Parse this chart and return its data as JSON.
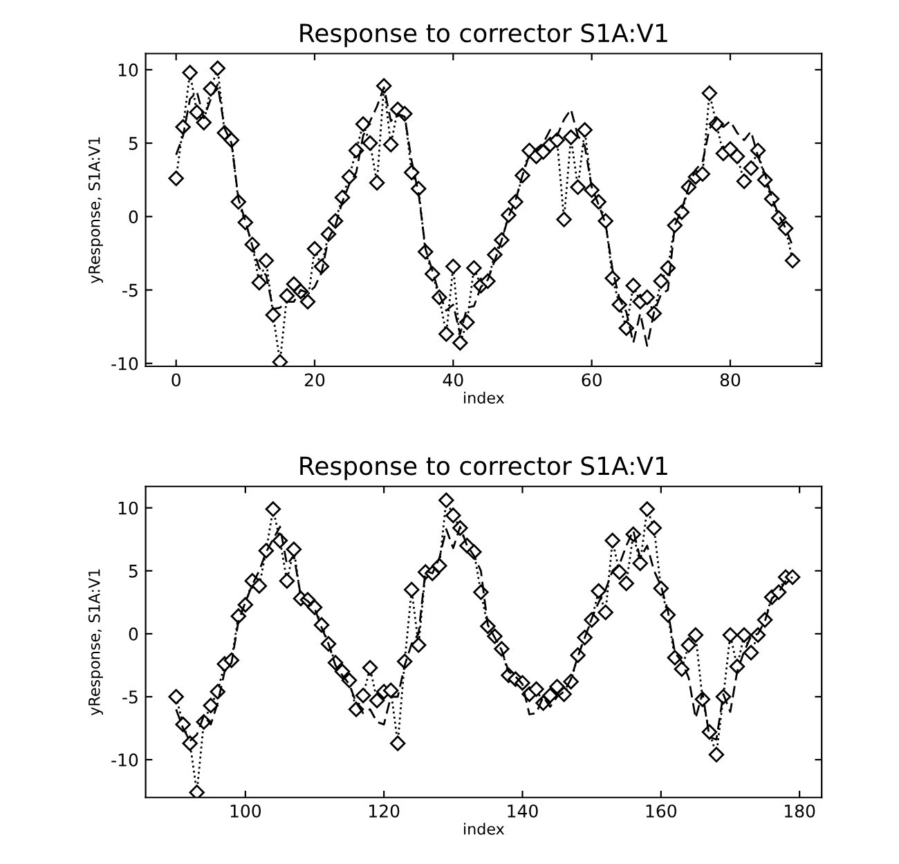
{
  "chart_data": [
    {
      "type": "line",
      "title": "Response to corrector S1A:V1",
      "xlabel": "index",
      "ylabel": "yResponse, S1A:V1",
      "x": [
        0,
        1,
        2,
        3,
        4,
        5,
        6,
        7,
        8,
        9,
        10,
        11,
        12,
        13,
        14,
        15,
        16,
        17,
        18,
        19,
        20,
        21,
        22,
        23,
        24,
        25,
        26,
        27,
        28,
        29,
        30,
        31,
        32,
        33,
        34,
        35,
        36,
        37,
        38,
        39,
        40,
        41,
        42,
        43,
        44,
        45,
        46,
        47,
        48,
        49,
        50,
        51,
        52,
        53,
        54,
        55,
        56,
        57,
        58,
        59,
        60,
        61,
        62,
        63,
        64,
        65,
        66,
        67,
        68,
        69,
        70,
        71,
        72,
        73,
        74,
        75,
        76,
        77,
        78,
        79,
        80,
        81,
        82,
        83,
        84,
        85,
        86,
        87,
        88,
        89
      ],
      "xlim": [
        -4.4,
        93.2
      ],
      "xticks": [
        0,
        20,
        40,
        60,
        80
      ],
      "ylim": [
        -10.2,
        11.1
      ],
      "yticks": [
        -10,
        -5,
        0,
        5,
        10
      ],
      "grid": false,
      "series": [
        {
          "color": "#000000",
          "marker": "diamond",
          "line_style": "dotted",
          "values": [
            2.6,
            6.1,
            9.8,
            7.1,
            6.4,
            8.7,
            10.1,
            5.7,
            5.2,
            1.0,
            -0.4,
            -1.9,
            -4.5,
            -3.0,
            -6.7,
            -9.9,
            -5.4,
            -4.6,
            -5.1,
            -5.8,
            -2.2,
            -3.4,
            -1.2,
            -0.3,
            1.3,
            2.7,
            4.5,
            6.3,
            5.0,
            2.3,
            8.9,
            4.9,
            7.3,
            7.0,
            3.0,
            1.9,
            -2.4,
            -3.9,
            -5.5,
            -8.0,
            -3.4,
            -8.6,
            -7.2,
            -3.5,
            -4.7,
            -4.4,
            -2.6,
            -1.6,
            0.1,
            1.0,
            2.8,
            4.5,
            4.1,
            4.4,
            4.9,
            5.2,
            -0.2,
            5.4,
            2.0,
            5.9,
            1.8,
            1.0,
            -0.3,
            -4.2,
            -6.0,
            -7.6,
            -4.7,
            -5.8,
            -5.5,
            -6.6,
            -4.4,
            -3.5,
            -0.6,
            0.3,
            2.0,
            2.7,
            2.9,
            8.4,
            6.3,
            4.3,
            4.6,
            4.1,
            2.4,
            3.3,
            4.5,
            2.5,
            1.2,
            -0.1,
            -0.8,
            -3.0
          ]
        },
        {
          "color": "#000000",
          "marker": "none",
          "line_style": "dashed",
          "values": [
            4.2,
            5.5,
            8.0,
            8.5,
            6.7,
            8.0,
            9.0,
            6.0,
            5.0,
            1.2,
            -0.3,
            -2.0,
            -3.5,
            -4.0,
            -6.3,
            -6.2,
            -5.8,
            -5.8,
            -5.0,
            -5.2,
            -4.8,
            -3.8,
            -1.5,
            -0.6,
            1.0,
            2.2,
            3.0,
            5.5,
            6.5,
            7.5,
            8.8,
            6.5,
            7.0,
            6.8,
            3.8,
            1.6,
            -2.2,
            -3.7,
            -5.3,
            -6.4,
            -6.0,
            -8.0,
            -6.2,
            -6.1,
            -4.8,
            -4.3,
            -3.0,
            -1.6,
            0.0,
            1.1,
            2.8,
            4.2,
            4.6,
            5.0,
            5.9,
            5.5,
            6.6,
            7.3,
            5.5,
            4.8,
            2.0,
            0.8,
            -0.5,
            -3.6,
            -5.6,
            -6.5,
            -8.6,
            -6.6,
            -8.8,
            -6.5,
            -5.3,
            -5.0,
            -0.6,
            0.5,
            2.0,
            3.2,
            3.7,
            6.0,
            6.6,
            6.1,
            6.5,
            5.7,
            5.2,
            5.8,
            4.1,
            2.9,
            1.3,
            0.1,
            -0.8,
            -2.0
          ]
        }
      ]
    },
    {
      "type": "line",
      "title": "Response to corrector S1A:V1",
      "xlabel": "index",
      "ylabel": "yResponse, S1A:V1",
      "x": [
        90,
        91,
        92,
        93,
        94,
        95,
        96,
        97,
        98,
        99,
        100,
        101,
        102,
        103,
        104,
        105,
        106,
        107,
        108,
        109,
        110,
        111,
        112,
        113,
        114,
        115,
        116,
        117,
        118,
        119,
        120,
        121,
        122,
        123,
        124,
        125,
        126,
        127,
        128,
        129,
        130,
        131,
        132,
        133,
        134,
        135,
        136,
        137,
        138,
        139,
        140,
        141,
        142,
        143,
        144,
        145,
        146,
        147,
        148,
        149,
        150,
        151,
        152,
        153,
        154,
        155,
        156,
        157,
        158,
        159,
        160,
        161,
        162,
        163,
        164,
        165,
        166,
        167,
        168,
        169,
        170,
        171,
        172,
        173,
        174,
        175,
        176,
        177,
        178,
        179
      ],
      "xlim": [
        85.6,
        183.2
      ],
      "xticks": [
        100,
        120,
        140,
        160,
        180
      ],
      "ylim": [
        -13,
        11.7
      ],
      "yticks": [
        -10,
        -5,
        0,
        5,
        10
      ],
      "grid": false,
      "series": [
        {
          "color": "#000000",
          "marker": "diamond",
          "line_style": "dotted",
          "values": [
            -5.0,
            -7.2,
            -8.7,
            -12.6,
            -7.0,
            -5.7,
            -4.6,
            -2.4,
            -2.1,
            1.4,
            2.3,
            4.2,
            3.8,
            6.6,
            9.9,
            7.4,
            4.2,
            6.7,
            2.8,
            2.7,
            2.1,
            0.7,
            -0.8,
            -2.3,
            -3.0,
            -3.7,
            -6.0,
            -4.9,
            -2.7,
            -5.3,
            -4.6,
            -4.5,
            -8.7,
            -2.2,
            3.5,
            -0.9,
            4.9,
            4.8,
            5.4,
            10.6,
            9.4,
            8.4,
            7.0,
            6.5,
            3.3,
            0.6,
            -0.2,
            -1.2,
            -3.3,
            -3.6,
            -3.9,
            -4.8,
            -4.4,
            -5.5,
            -4.9,
            -4.2,
            -4.8,
            -3.8,
            -1.7,
            -0.3,
            1.1,
            3.4,
            1.7,
            7.4,
            4.9,
            4.0,
            7.9,
            5.6,
            9.9,
            8.4,
            3.6,
            1.5,
            -1.9,
            -2.8,
            -0.9,
            -0.1,
            -5.2,
            -7.8,
            -9.6,
            -5.0,
            -0.1,
            -2.6,
            -0.1,
            -1.5,
            -0.1,
            1.1,
            2.9,
            3.3,
            4.5,
            4.5
          ]
        },
        {
          "color": "#000000",
          "marker": "none",
          "line_style": "dashed",
          "values": [
            -6.0,
            -7.5,
            -8.5,
            -8.0,
            -6.5,
            -7.2,
            -5.5,
            -3.0,
            -2.3,
            1.0,
            2.5,
            3.9,
            5.0,
            6.5,
            7.5,
            8.5,
            5.5,
            6.2,
            3.0,
            2.6,
            2.0,
            0.5,
            -0.8,
            -2.5,
            -3.3,
            -4.0,
            -5.5,
            -6.3,
            -6.0,
            -7.0,
            -7.2,
            -5.0,
            -5.0,
            -2.5,
            -0.8,
            0.0,
            5.0,
            4.8,
            6.0,
            8.3,
            6.8,
            8.5,
            7.0,
            6.2,
            5.0,
            0.7,
            -0.3,
            -1.3,
            -3.0,
            -3.4,
            -4.0,
            -6.4,
            -6.3,
            -5.0,
            -5.8,
            -5.0,
            -4.6,
            -3.6,
            -1.8,
            -0.3,
            1.2,
            2.5,
            3.5,
            5.0,
            5.5,
            7.0,
            8.2,
            6.0,
            7.0,
            5.0,
            3.8,
            1.8,
            -1.5,
            -2.2,
            -3.5,
            -6.7,
            -4.7,
            -8.2,
            -8.4,
            -4.8,
            -6.2,
            -3.0,
            -1.4,
            -0.2,
            0.0,
            1.0,
            2.8,
            3.3,
            4.2,
            4.5
          ]
        }
      ]
    }
  ]
}
